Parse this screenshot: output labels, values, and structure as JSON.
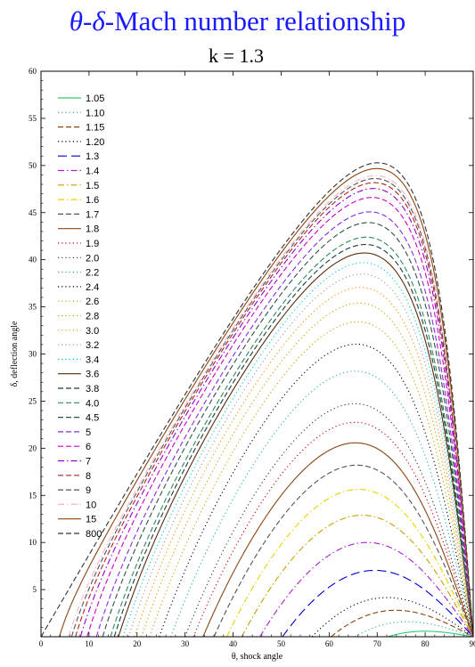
{
  "page": {
    "title_theta": "θ",
    "title_delta": "δ",
    "title_rest": "-Mach number relationship",
    "subtitle": "k = 1.3"
  },
  "chart_data": {
    "type": "line",
    "title": "θ-δ-Mach number relationship",
    "subtitle": "k = 1.3",
    "xlabel": "θ, shock angle",
    "ylabel": "δ, deflection angle",
    "xlim": [
      0,
      90
    ],
    "ylim": [
      0,
      60
    ],
    "xticks": [
      0,
      10,
      20,
      30,
      40,
      50,
      60,
      70,
      80,
      90
    ],
    "yticks": [
      5,
      10,
      15,
      20,
      25,
      30,
      35,
      40,
      45,
      50,
      55,
      60
    ],
    "gamma": 1.3,
    "legend_position": "top-left",
    "series": [
      {
        "name": "1.05",
        "mach": 1.05,
        "color": "#2ecc71",
        "style": "solid"
      },
      {
        "name": "1.10",
        "mach": 1.1,
        "color": "#27ae9f",
        "style": "dot"
      },
      {
        "name": "1.15",
        "mach": 1.15,
        "color": "#8b4513",
        "style": "dash"
      },
      {
        "name": "1.20",
        "mach": 1.2,
        "color": "#000000",
        "style": "dot"
      },
      {
        "name": "1.3",
        "mach": 1.3,
        "color": "#0000cc",
        "style": "longdash"
      },
      {
        "name": "1.4",
        "mach": 1.4,
        "color": "#aa22cc",
        "style": "dashdot"
      },
      {
        "name": "1.5",
        "mach": 1.5,
        "color": "#c8a000",
        "style": "dashdot"
      },
      {
        "name": "1.6",
        "mach": 1.6,
        "color": "#e6d200",
        "style": "dashdot"
      },
      {
        "name": "1.7",
        "mach": 1.7,
        "color": "#555555",
        "style": "dash"
      },
      {
        "name": "1.8",
        "mach": 1.8,
        "color": "#8b4513",
        "style": "solid"
      },
      {
        "name": "1.9",
        "mach": 1.9,
        "color": "#cc0000",
        "style": "dot"
      },
      {
        "name": "2.0",
        "mach": 2.0,
        "color": "#333333",
        "style": "dot"
      },
      {
        "name": "2.2",
        "mach": 2.2,
        "color": "#20b2aa",
        "style": "dot"
      },
      {
        "name": "2.4",
        "mach": 2.4,
        "color": "#000000",
        "style": "dot"
      },
      {
        "name": "2.6",
        "mach": 2.6,
        "color": "#c8a000",
        "style": "dot"
      },
      {
        "name": "2.8",
        "mach": 2.8,
        "color": "#c8a000",
        "style": "dot"
      },
      {
        "name": "3.0",
        "mach": 3.0,
        "color": "#ff8c00",
        "style": "dot"
      },
      {
        "name": "3.2",
        "mach": 3.2,
        "color": "#999999",
        "style": "dot"
      },
      {
        "name": "3.4",
        "mach": 3.4,
        "color": "#00cccc",
        "style": "dot"
      },
      {
        "name": "3.6",
        "mach": 3.6,
        "color": "#5a2d0c",
        "style": "solid"
      },
      {
        "name": "3.8",
        "mach": 3.8,
        "color": "#1a3d3d",
        "style": "dash"
      },
      {
        "name": "4.0",
        "mach": 4.0,
        "color": "#2e8b57",
        "style": "dash"
      },
      {
        "name": "4.5",
        "mach": 4.5,
        "color": "#2f4f4f",
        "style": "dash"
      },
      {
        "name": "5",
        "mach": 5,
        "color": "#8a2be2",
        "style": "dash"
      },
      {
        "name": "6",
        "mach": 6,
        "color": "#cc00cc",
        "style": "dash"
      },
      {
        "name": "7",
        "mach": 7,
        "color": "#9400d3",
        "style": "dashdot"
      },
      {
        "name": "8",
        "mach": 8,
        "color": "#b22222",
        "style": "dash"
      },
      {
        "name": "9",
        "mach": 9,
        "color": "#555555",
        "style": "dash"
      },
      {
        "name": "10",
        "mach": 10,
        "color": "#ffb6c1",
        "style": "dashdot"
      },
      {
        "name": "15",
        "mach": 15,
        "color": "#8b4513",
        "style": "solid"
      },
      {
        "name": "800",
        "mach": 800,
        "color": "#333333",
        "style": "dash"
      }
    ]
  }
}
